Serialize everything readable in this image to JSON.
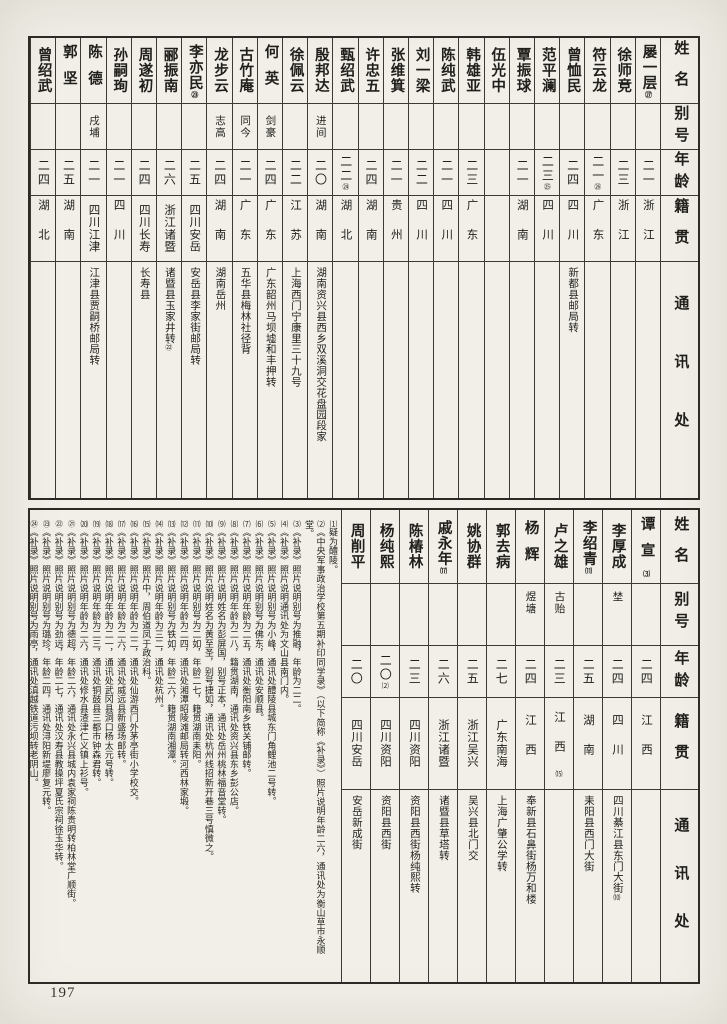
{
  "page": {
    "number": "197"
  },
  "headers": {
    "name": "姓名",
    "alias": "别号",
    "age": "年龄",
    "origin": "籍贯",
    "address": "通讯处"
  },
  "top_table": {
    "entries": [
      {
        "name": "屡一层",
        "name_note": "㉗",
        "alias": "",
        "age": "二一",
        "origin": "浙江",
        "address": ""
      },
      {
        "name": "徐师竞",
        "alias": "",
        "age": "二三",
        "origin": "浙江",
        "address": ""
      },
      {
        "name": "符云龙",
        "alias": "",
        "age": "二一",
        "age_note": "㉖",
        "origin": "广东",
        "address": ""
      },
      {
        "name": "曾恤民",
        "alias": "",
        "age": "二四",
        "origin": "四川",
        "address": "新都县邮局转"
      },
      {
        "name": "范平澜",
        "alias": "",
        "age": "二三",
        "age_note": "㉕",
        "origin": "四川",
        "address": ""
      },
      {
        "name": "覃振球",
        "alias": "",
        "age": "二一",
        "origin": "湖南",
        "address": ""
      },
      {
        "name": "伍光中",
        "alias": "",
        "age": "",
        "origin": "",
        "address": ""
      },
      {
        "name": "韩雄亚",
        "alias": "",
        "age": "二三",
        "origin": "广东",
        "address": ""
      },
      {
        "name": "陈纯武",
        "alias": "",
        "age": "二一",
        "origin": "四川",
        "address": ""
      },
      {
        "name": "刘一梁",
        "alias": "",
        "age": "二二",
        "origin": "四川",
        "address": ""
      },
      {
        "name": "张维箕",
        "alias": "",
        "age": "二一",
        "origin": "贵州",
        "address": ""
      },
      {
        "name": "许忠五",
        "alias": "",
        "age": "二四",
        "origin": "湖南",
        "address": ""
      },
      {
        "name": "甄绍武",
        "alias": "",
        "age": "二二",
        "age_note": "㉔",
        "origin": "湖北",
        "address": ""
      },
      {
        "name": "殷邦达",
        "alias": "进间",
        "age": "二〇",
        "origin": "湖南",
        "address": "湖南资兴县西乡双溪洞交花盘园段家"
      },
      {
        "name": "徐佩云",
        "alias": "",
        "age": "二二",
        "origin": "江苏",
        "address": "上海西门宁康里三十九号"
      },
      {
        "name": "何英",
        "alias": "剑豪",
        "age": "二四",
        "origin": "广东",
        "address": "广东韶州马坝墟和丰押转"
      },
      {
        "name": "古竹庵",
        "alias": "同今",
        "age": "二一",
        "origin": "广东",
        "address": "五华县梅林社径背"
      },
      {
        "name": "龙步云",
        "alias": "志高",
        "age": "二四",
        "origin": "湖南",
        "address": "湖南岳州"
      },
      {
        "name": "李亦民",
        "name_note": "㉓",
        "alias": "",
        "age": "二五",
        "origin": "四川安岳",
        "address": "安岳县李家街邮局转"
      },
      {
        "name": "郦振南",
        "alias": "",
        "age": "二六",
        "origin": "浙江诸暨",
        "address": "诸暨县玉家井转",
        "addr_note": "㉒"
      },
      {
        "name": "周遂初",
        "alias": "",
        "age": "二四",
        "origin": "四川长寿",
        "address": "长寿县"
      },
      {
        "name": "孙嗣珣",
        "alias": "",
        "age": "二一",
        "origin": "四川",
        "address": ""
      },
      {
        "name": "陈德",
        "alias": "戌埔",
        "age": "二一",
        "origin": "四川江津",
        "address": "江津县贾嗣桥邮局转"
      },
      {
        "name": "郭坚",
        "alias": "",
        "age": "二五",
        "origin": "湖南",
        "address": ""
      },
      {
        "name": "曾绍武",
        "alias": "",
        "age": "二四",
        "origin": "湖北",
        "address": ""
      }
    ]
  },
  "bottom_table": {
    "entries": [
      {
        "name": "谭宣",
        "name_note": "⑶",
        "alias": "",
        "age": "二四",
        "origin": "江西",
        "address": ""
      },
      {
        "name": "李厚成",
        "alias": "埜",
        "age": "二四",
        "origin": "四川",
        "address": "四川綦江县东门大街",
        "addr_note": "⑽"
      },
      {
        "name": "李绍青",
        "name_note": "⑾",
        "alias": "",
        "age": "二五",
        "origin": "湖南",
        "address": "耒阳县西门大街"
      },
      {
        "name": "卢之雄",
        "alias": "古贻",
        "age": "二三",
        "origin": "江西",
        "origin_note": "⒂",
        "address": ""
      },
      {
        "name": "杨辉",
        "alias": "煜塘",
        "age": "二四",
        "origin": "江西",
        "address": "奉新县石鼻街杨万和楼"
      },
      {
        "name": "郭去病",
        "alias": "",
        "age": "二七",
        "origin": "广东南海",
        "address": "上海广肇公学转"
      },
      {
        "name": "姚协群",
        "alias": "",
        "age": "二五",
        "origin": "浙江吴兴",
        "address": "吴兴县北门交"
      },
      {
        "name": "戚永年",
        "name_note": "⒄",
        "alias": "",
        "age": "二六",
        "origin": "浙江诸暨",
        "address": "诸暨县草塔转"
      },
      {
        "name": "陈椿林",
        "alias": "",
        "age": "二三",
        "origin": "四川资阳",
        "address": "资阳县西街杨纯熙转"
      },
      {
        "name": "杨纯熙",
        "alias": "",
        "age": "二〇",
        "age_note": "⑵",
        "origin": "四川资阳",
        "address": "资阳县西街"
      },
      {
        "name": "周削平",
        "alias": "",
        "age": "二〇",
        "origin": "四川安岳",
        "address": "安岳新成街"
      }
    ]
  },
  "footnotes": [
    {
      "label": "⑴",
      "text": "疑为醴陵。"
    },
    {
      "label": "⑵",
      "text": "《中央军事政治学校第五期补印同学录》（以下简称《补录》）照片说明年龄二六，通讯处为衡山草市永顺堂。"
    },
    {
      "label": "⑶",
      "text": "《补录》照片说明别号为推融，年龄为二二。"
    },
    {
      "label": "⑷",
      "text": "《补录》照片说明通讯处为文山县南门内。"
    },
    {
      "label": "⑸",
      "text": "《补录》照片说明别号为小峰，通讯处醴陵县城东门角鲤池二号转。"
    },
    {
      "label": "⑹",
      "text": "《补录》照片说明别号为佛东，通讯处安顺县。"
    },
    {
      "label": "⑺",
      "text": "《补录》照片说明年龄为二五，通讯处衡阳南乡铁关铺邮转。"
    },
    {
      "label": "⑻",
      "text": "《补录》照片说明年龄为二八，籍贯湖南，通讯处资兴县东乡彭公店。"
    },
    {
      "label": "⑼",
      "text": "《补录》照片说明姓名为彭屏国，别号正本，通讯处岳州桃林福音堂转。"
    },
    {
      "label": "⑽",
      "text": "《补录》照片说明姓名为黄至圣，别号捷如，通讯处杭州线招新开巷三号慎微之。"
    },
    {
      "label": "⑾",
      "text": "《补录》照片说明别号为二如，年龄二七，籍贯湖南耒阳。"
    },
    {
      "label": "⑿",
      "text": "《补录》照片说明年龄为二四，通讯处湘潭昭陵滩邮局转河西林家塅。"
    },
    {
      "label": "⒀",
      "text": "《补录》照片说明别号为铁如，年龄二六，籍贯湖南湘潭。"
    },
    {
      "label": "⒁",
      "text": "《补录》照片说明年龄为三二，通讯处杭州。"
    },
    {
      "label": "⒂",
      "text": "《补录》照片中，周伯道凤于政治科。"
    },
    {
      "label": "⒃",
      "text": "《补录》照片说明年龄为二二，通讯处仙游西门外茅亭街小学校交。"
    },
    {
      "label": "⒄",
      "text": "《补录》照片说明年龄为二六，通讯处威远县新盛场邮转。"
    },
    {
      "label": "⒅",
      "text": "《补录》照片说明年龄为二一，通讯处武冈县洞口杨太元号转。"
    },
    {
      "label": "⒆",
      "text": "《补录》照片说明年龄为二三，通讯处铜鼓县三都市钟森君转。"
    },
    {
      "label": "⒇",
      "text": "《补录》照片说明年龄为二六，通讯处修水县渣津仁义镇上衫号。"
    },
    {
      "label": "㉑",
      "text": "《补录》照片说明别号为德超，年龄二六，通讯处永兴县城内袁家祠陈贵明转柏林堂广顺街。"
    },
    {
      "label": "㉒",
      "text": "《补录》照片说明别号为劲远，年龄二七，通讯处汉寿县教操坪夏氏宗祠徐玉华转。"
    },
    {
      "label": "㉓",
      "text": "《补录》照片说明别号为璐珍，年龄二四，通讯处浔阳新堤廖复元转。"
    },
    {
      "label": "㉔",
      "text": "《补录》照片说明别号为雨亭，通讯处滇越铁道污坝转老阴山。"
    },
    {
      "label": "㉕",
      "text": "《补录》照片说明别号为庆余，通讯处湘潭十八总万珍堂转。"
    },
    {
      "label": "㉖",
      "text": "《补录》照片说明姓名为向军次，年龄二二，通讯处石门县子良区邮转。"
    },
    {
      "label": "㉗",
      "text": "《补录》照片说明姓名为楼一层，年龄二三，通讯处东阳白坦转大园。"
    }
  ]
}
